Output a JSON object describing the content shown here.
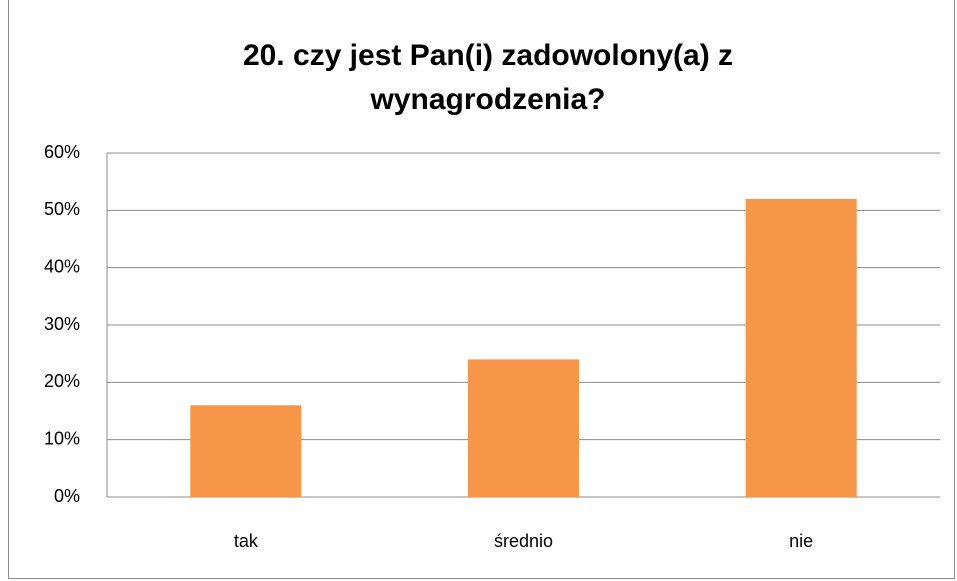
{
  "chart_data": {
    "type": "bar",
    "title": "20. czy jest Pan(i) zadowolony(a) z wynagrodzenia?",
    "categories": [
      "tak",
      "średnio",
      "nie"
    ],
    "values": [
      16,
      24,
      52
    ],
    "color": "#f79646",
    "ylim": [
      0,
      60
    ],
    "yticks": [
      {
        "value": 0,
        "label": "0%"
      },
      {
        "value": 10,
        "label": "10%"
      },
      {
        "value": 20,
        "label": "20%"
      },
      {
        "value": 30,
        "label": "30%"
      },
      {
        "value": 40,
        "label": "40%"
      },
      {
        "value": 50,
        "label": "50%"
      },
      {
        "value": 60,
        "label": "60%"
      }
    ],
    "grid": true
  }
}
